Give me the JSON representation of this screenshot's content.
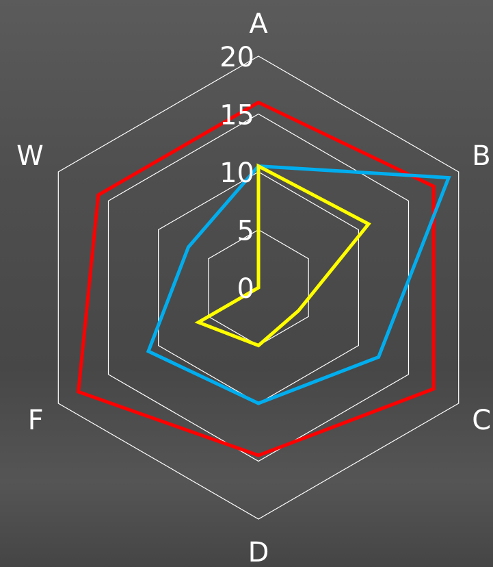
{
  "chart_data": {
    "type": "radar",
    "title": "",
    "axes": [
      "A",
      "B",
      "C",
      "D",
      "F",
      "W"
    ],
    "scale": {
      "min": 0,
      "max": 20,
      "ticks": [
        0,
        5,
        10,
        15,
        20
      ]
    },
    "grid": true,
    "legend": "none",
    "series": [
      {
        "color": "#ff0000",
        "values": [
          16,
          17.5,
          17.5,
          14.5,
          18,
          16
        ]
      },
      {
        "color": "#00aeef",
        "values": [
          10.5,
          19,
          12,
          10,
          11,
          7
        ]
      },
      {
        "color": "#ffff00",
        "values": [
          10.5,
          11,
          4,
          5,
          6,
          0
        ]
      }
    ]
  }
}
